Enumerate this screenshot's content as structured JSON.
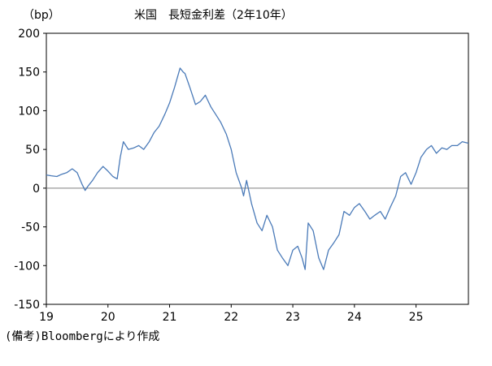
{
  "chart_data": {
    "type": "line",
    "title": "米国　長短金利差（2年10年）",
    "ylabel": "（bp）",
    "xlabel": "",
    "note": "(備考)Bloombergにより作成",
    "ylim": [
      -150,
      200
    ],
    "yticks": [
      -150,
      -100,
      -50,
      0,
      50,
      100,
      150,
      200
    ],
    "xlim": [
      2019.0,
      2025.85
    ],
    "xticks": [
      {
        "value": 2019,
        "label": "19"
      },
      {
        "value": 2020,
        "label": "20"
      },
      {
        "value": 2021,
        "label": "21"
      },
      {
        "value": 2022,
        "label": "22"
      },
      {
        "value": 2023,
        "label": "23"
      },
      {
        "value": 2024,
        "label": "24"
      },
      {
        "value": 2025,
        "label": "25"
      }
    ],
    "zero_line": true,
    "grid": false,
    "line_color": "#4a7ab8",
    "series": [
      {
        "x": [
          2019.0,
          2019.08,
          2019.17,
          2019.25,
          2019.33,
          2019.42,
          2019.5,
          2019.58,
          2019.63,
          2019.67,
          2019.75,
          2019.83,
          2019.92,
          2020.0,
          2020.08,
          2020.15,
          2020.2,
          2020.25,
          2020.33,
          2020.42,
          2020.5,
          2020.58,
          2020.67,
          2020.75,
          2020.83,
          2020.92,
          2021.0,
          2021.08,
          2021.17,
          2021.22,
          2021.25,
          2021.33,
          2021.42,
          2021.5,
          2021.58,
          2021.67,
          2021.75,
          2021.83,
          2021.92,
          2022.0,
          2022.08,
          2022.17,
          2022.2,
          2022.25,
          2022.33,
          2022.42,
          2022.5,
          2022.58,
          2022.67,
          2022.75,
          2022.83,
          2022.92,
          2023.0,
          2023.08,
          2023.15,
          2023.2,
          2023.25,
          2023.33,
          2023.42,
          2023.5,
          2023.58,
          2023.67,
          2023.75,
          2023.83,
          2023.92,
          2024.0,
          2024.08,
          2024.17,
          2024.25,
          2024.33,
          2024.42,
          2024.5,
          2024.58,
          2024.67,
          2024.75,
          2024.83,
          2024.92,
          2025.0,
          2025.08,
          2025.17,
          2025.25,
          2025.33,
          2025.42,
          2025.5,
          2025.58,
          2025.67,
          2025.75,
          2025.85
        ],
        "y": [
          17,
          16,
          15,
          18,
          20,
          25,
          20,
          5,
          -3,
          2,
          10,
          20,
          28,
          22,
          15,
          12,
          40,
          60,
          50,
          52,
          55,
          50,
          60,
          72,
          80,
          95,
          110,
          130,
          155,
          150,
          148,
          130,
          108,
          112,
          120,
          105,
          95,
          85,
          70,
          50,
          20,
          0,
          -10,
          10,
          -20,
          -45,
          -55,
          -35,
          -50,
          -80,
          -90,
          -100,
          -80,
          -75,
          -90,
          -105,
          -45,
          -55,
          -90,
          -105,
          -80,
          -70,
          -60,
          -30,
          -35,
          -25,
          -20,
          -30,
          -40,
          -35,
          -30,
          -40,
          -25,
          -10,
          15,
          20,
          5,
          20,
          40,
          50,
          55,
          45,
          52,
          50,
          55,
          55,
          60,
          58
        ]
      }
    ]
  }
}
